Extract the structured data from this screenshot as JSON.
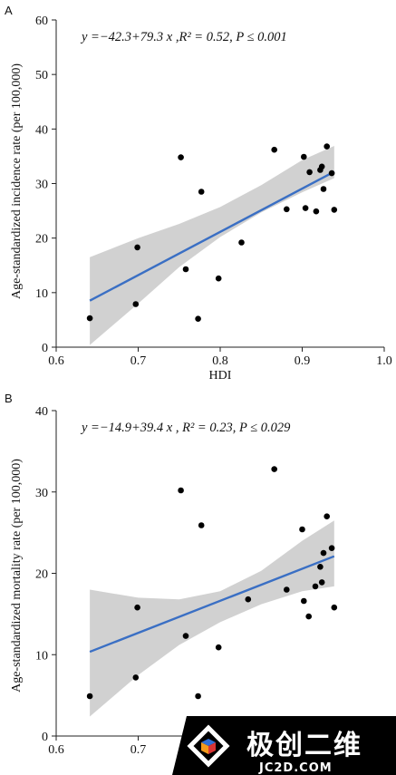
{
  "chart_data": [
    {
      "panel": "A",
      "type": "scatter",
      "equation": "y =−42.3+79.3 x ,R² = 0.52, P ≤ 0.001",
      "ylabel": "Age-standardized incidence rate (per 100,000)",
      "xlabel": "HDI",
      "xlim": [
        0.6,
        1.0
      ],
      "ylim": [
        0,
        60
      ],
      "xticks": [
        0.6,
        0.7,
        0.8,
        0.9,
        1.0
      ],
      "xtick_labels": [
        "0.6",
        "0.7",
        "0.8",
        "0.9",
        "1.0"
      ],
      "yticks": [
        0,
        10,
        20,
        30,
        40,
        50,
        60
      ],
      "ytick_labels": [
        "0",
        "10",
        "20",
        "30",
        "40",
        "50",
        "60"
      ],
      "points": [
        {
          "x": 0.641,
          "y": 5.3
        },
        {
          "x": 0.697,
          "y": 7.9
        },
        {
          "x": 0.699,
          "y": 18.3
        },
        {
          "x": 0.752,
          "y": 34.8
        },
        {
          "x": 0.758,
          "y": 14.3
        },
        {
          "x": 0.773,
          "y": 5.2
        },
        {
          "x": 0.777,
          "y": 28.5
        },
        {
          "x": 0.798,
          "y": 12.6
        },
        {
          "x": 0.826,
          "y": 19.2
        },
        {
          "x": 0.866,
          "y": 36.2
        },
        {
          "x": 0.881,
          "y": 25.3
        },
        {
          "x": 0.902,
          "y": 34.9
        },
        {
          "x": 0.904,
          "y": 25.5
        },
        {
          "x": 0.909,
          "y": 32.1
        },
        {
          "x": 0.917,
          "y": 24.9
        },
        {
          "x": 0.922,
          "y": 32.5
        },
        {
          "x": 0.924,
          "y": 33.1
        },
        {
          "x": 0.926,
          "y": 29.0
        },
        {
          "x": 0.93,
          "y": 36.8
        },
        {
          "x": 0.936,
          "y": 31.9
        },
        {
          "x": 0.939,
          "y": 25.2
        }
      ],
      "fit": {
        "intercept": -42.3,
        "slope": 79.3,
        "x_range": [
          0.641,
          0.939
        ]
      },
      "ci_band": {
        "x": [
          0.641,
          0.7,
          0.75,
          0.8,
          0.85,
          0.9,
          0.939
        ],
        "lower": [
          0.4,
          8.0,
          14.7,
          20.2,
          24.7,
          28.4,
          31.0
        ],
        "upper": [
          16.5,
          20.0,
          22.6,
          25.7,
          29.7,
          34.3,
          36.9
        ]
      },
      "grid": false,
      "colors": {
        "points": "#000000",
        "line": "#3a6fc4",
        "band": "#cfcfcf"
      }
    },
    {
      "panel": "B",
      "type": "scatter",
      "equation": "y =−14.9+39.4 x , R² = 0.23, P ≤ 0.029",
      "ylabel": "Age-standardized mortality rate (per 100,000)",
      "xlabel": "",
      "xlim": [
        0.6,
        1.0
      ],
      "ylim": [
        0,
        40
      ],
      "xticks": [
        0.6,
        0.7
      ],
      "xtick_labels": [
        "0.6",
        "0.7"
      ],
      "yticks": [
        0,
        10,
        20,
        30,
        40
      ],
      "ytick_labels": [
        "0",
        "10",
        "20",
        "30",
        "40"
      ],
      "points": [
        {
          "x": 0.641,
          "y": 4.9
        },
        {
          "x": 0.697,
          "y": 7.2
        },
        {
          "x": 0.699,
          "y": 15.8
        },
        {
          "x": 0.752,
          "y": 30.2
        },
        {
          "x": 0.758,
          "y": 12.3
        },
        {
          "x": 0.773,
          "y": 4.9
        },
        {
          "x": 0.777,
          "y": 25.9
        },
        {
          "x": 0.798,
          "y": 10.9
        },
        {
          "x": 0.834,
          "y": 16.8
        },
        {
          "x": 0.866,
          "y": 32.8
        },
        {
          "x": 0.881,
          "y": 18.0
        },
        {
          "x": 0.9,
          "y": 25.4
        },
        {
          "x": 0.902,
          "y": 16.6
        },
        {
          "x": 0.908,
          "y": 14.7
        },
        {
          "x": 0.916,
          "y": 18.4
        },
        {
          "x": 0.922,
          "y": 20.8
        },
        {
          "x": 0.924,
          "y": 18.9
        },
        {
          "x": 0.926,
          "y": 22.5
        },
        {
          "x": 0.93,
          "y": 27.0
        },
        {
          "x": 0.936,
          "y": 23.1
        },
        {
          "x": 0.939,
          "y": 15.8
        }
      ],
      "fit": {
        "intercept": -14.9,
        "slope": 39.4,
        "x_range": [
          0.641,
          0.939
        ]
      },
      "ci_band": {
        "x": [
          0.641,
          0.7,
          0.75,
          0.8,
          0.85,
          0.9,
          0.939
        ],
        "lower": [
          2.4,
          7.5,
          11.2,
          14.0,
          16.2,
          17.8,
          18.4
        ],
        "upper": [
          18.0,
          17.0,
          16.8,
          17.8,
          20.3,
          24.0,
          26.5
        ]
      },
      "grid": false,
      "colors": {
        "points": "#000000",
        "line": "#3a6fc4",
        "band": "#cfcfcf"
      }
    }
  ],
  "watermark": {
    "title": "极创二维",
    "url": "JC2D.COM",
    "colors": {
      "background": "#000000",
      "logo_blue": "#2f6fd6",
      "logo_orange": "#f39a1b",
      "logo_red": "#d93535"
    }
  }
}
